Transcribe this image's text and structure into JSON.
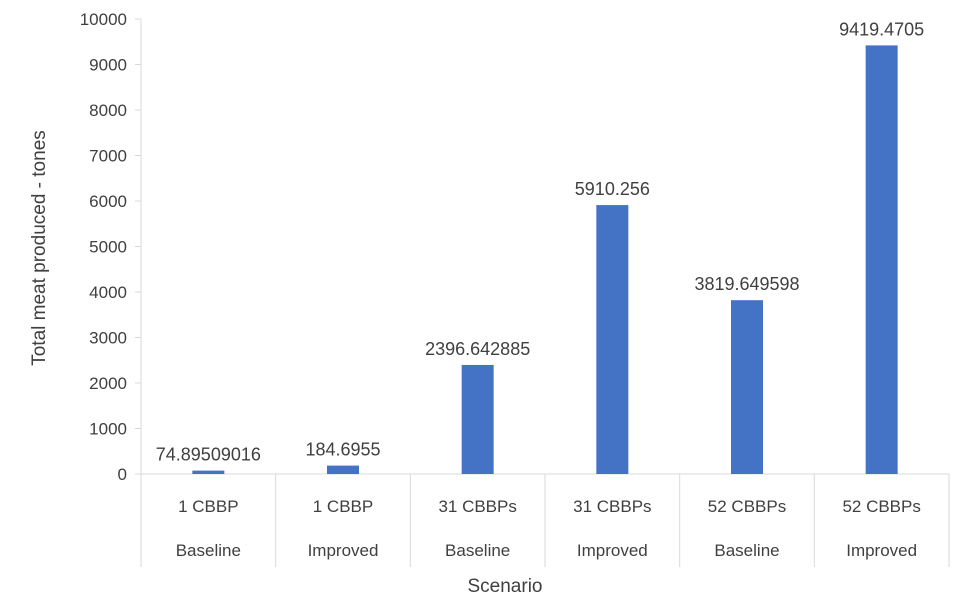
{
  "chart_data": {
    "type": "bar",
    "title": "",
    "xlabel": "Scenario",
    "ylabel": "Total meat produced - tones",
    "ylim": [
      0,
      10000
    ],
    "yticks": [
      0,
      1000,
      2000,
      3000,
      4000,
      5000,
      6000,
      7000,
      8000,
      9000,
      10000
    ],
    "grid": false,
    "legend": "none",
    "bar_color": "#4472C4",
    "categories": [
      {
        "level1": "1 CBBP",
        "level2": "Baseline"
      },
      {
        "level1": "1 CBBP",
        "level2": "Improved"
      },
      {
        "level1": "31 CBBPs",
        "level2": "Baseline"
      },
      {
        "level1": "31 CBBPs",
        "level2": "Improved"
      },
      {
        "level1": "52 CBBPs",
        "level2": "Baseline"
      },
      {
        "level1": "52 CBBPs",
        "level2": "Improved"
      }
    ],
    "values": [
      74.89509016,
      184.6955,
      2396.642885,
      5910.256,
      3819.649598,
      9419.4705
    ],
    "data_labels": [
      "74.89509016",
      "184.6955",
      "2396.642885",
      "5910.256",
      "3819.649598",
      "9419.4705"
    ]
  }
}
